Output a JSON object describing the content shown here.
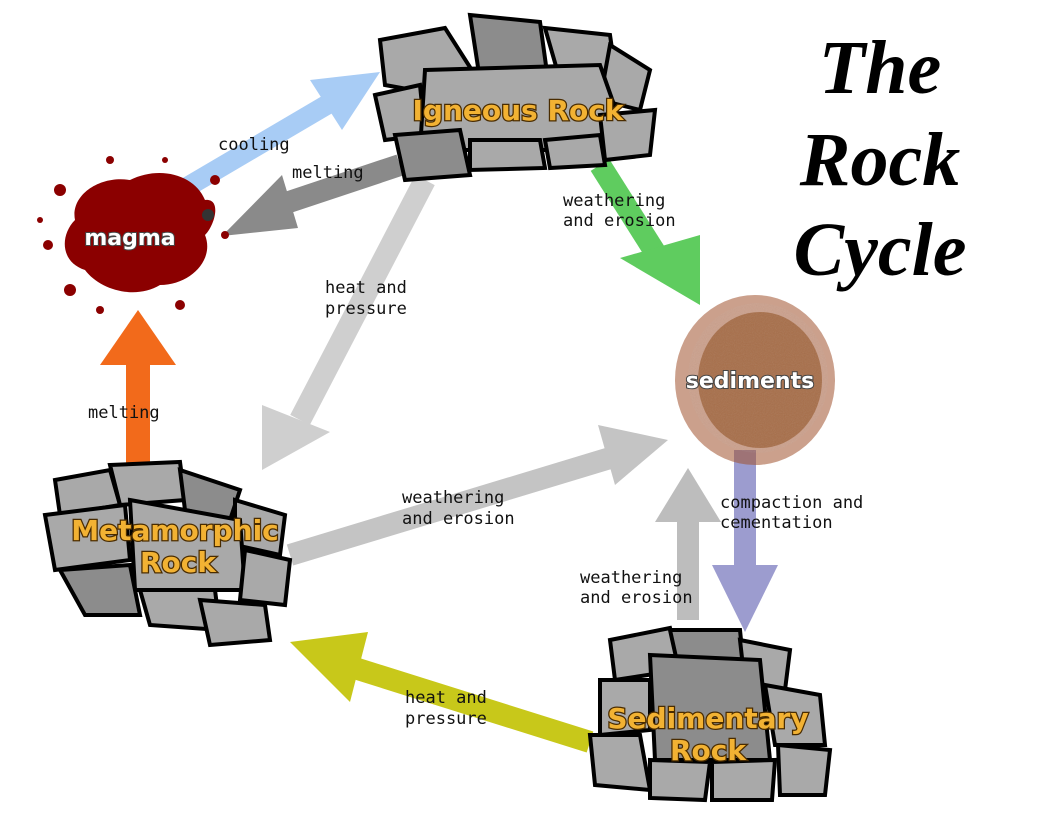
{
  "title": {
    "line1": "The",
    "line2": "Rock",
    "line3": "Cycle"
  },
  "nodes": {
    "igneous": "Igneous Rock",
    "magma": "magma",
    "sediments": "sediments",
    "metamorphic_line1": "Metamorphic",
    "metamorphic_line2": "Rock",
    "sedimentary_line1": "Sedimentary",
    "sedimentary_line2": "Rock"
  },
  "edges": {
    "cooling": "cooling",
    "melting_top": "melting",
    "weathering_igneous_1": "weathering",
    "weathering_igneous_2": "and erosion",
    "heat_pressure_igneous_1": "heat and",
    "heat_pressure_igneous_2": "pressure",
    "melting_left": "melting",
    "weathering_meta_1": "weathering",
    "weathering_meta_2": "and erosion",
    "compaction_1": "compaction and",
    "compaction_2": "cementation",
    "weathering_sed_1": "weathering",
    "weathering_sed_2": "and erosion",
    "heat_pressure_sed_1": "heat and",
    "heat_pressure_sed_2": "pressure"
  },
  "colors": {
    "cooling_arrow": "#a8ccf5",
    "melting_top_arrow": "#8a8a8a",
    "weathering_igneous_arrow": "#5fcc5f",
    "heat_pressure_igneous_arrow": "#cfcfcf",
    "melting_left_arrow": "#f26a1b",
    "weathering_meta_arrow": "#c4c4c4",
    "compaction_arrow": "#9c9ccf",
    "weathering_sed_arrow": "#bdbdbd",
    "heat_pressure_sed_arrow": "#c8c81a",
    "magma": "#8b0000",
    "sediments": "#a0522d",
    "rock": "#a9a9a9",
    "label_orange": "#f2b233"
  }
}
